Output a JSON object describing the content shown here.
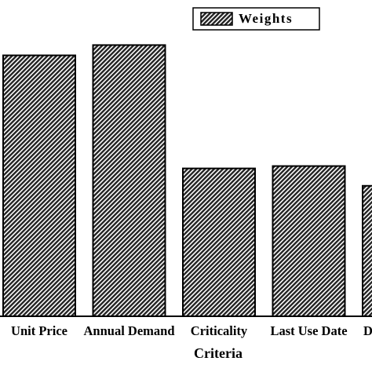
{
  "chart_data": {
    "type": "bar",
    "x_label": "Criteria",
    "categories": [
      "Unit Price",
      "Annual Demand",
      "Criticality",
      "Last Use Date",
      "D"
    ],
    "series": [
      {
        "name": "Weights",
        "color": "#222222",
        "values": [
          0.33,
          0.343,
          0.187,
          0.19,
          0.165
        ]
      }
    ],
    "ylim": [
      0,
      0.4
    ],
    "legend": "top-right"
  }
}
